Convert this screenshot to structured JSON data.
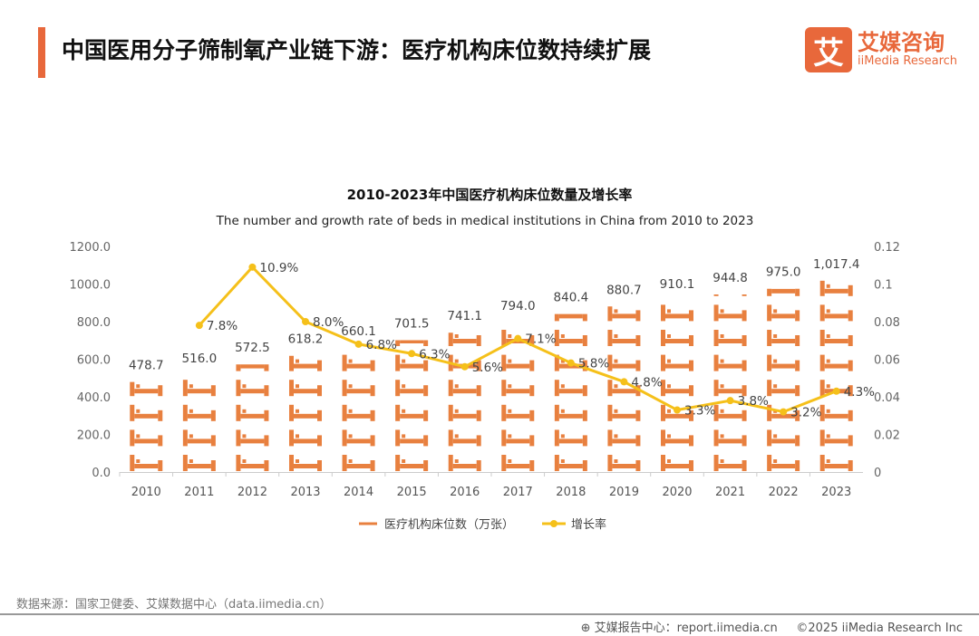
{
  "header": {
    "title": "中国医用分子筛制氧产业链下游：医疗机构床位数持续扩展",
    "logo_cn": "艾媒咨询",
    "logo_en": "iiMedia Research",
    "logo_mark": "艾"
  },
  "colors": {
    "accent": "#e8683b",
    "bar": "#e8803f",
    "line": "#f5c01a"
  },
  "chart_data": {
    "type": "bar+line",
    "title": "2010-2023年中国医疗机构床位数量及增长率",
    "subtitle": "The number and growth rate of beds in medical institutions in China from 2010 to 2023",
    "categories": [
      "2010",
      "2011",
      "2012",
      "2013",
      "2014",
      "2015",
      "2016",
      "2017",
      "2018",
      "2019",
      "2020",
      "2021",
      "2022",
      "2023"
    ],
    "series": [
      {
        "name": "医疗机构床位数（万张）",
        "type": "pictorial-bar",
        "axis": "left",
        "values": [
          478.7,
          516.0,
          572.5,
          618.2,
          660.1,
          701.5,
          741.1,
          794.0,
          840.4,
          880.7,
          910.1,
          944.8,
          975.0,
          1017.4
        ],
        "labels": [
          "478.7",
          "516.0",
          "572.5",
          "618.2",
          "660.1",
          "701.5",
          "741.1",
          "794.0",
          "840.4",
          "880.7",
          "910.1",
          "944.8",
          "975.0",
          "1,017.4"
        ]
      },
      {
        "name": "增长率",
        "type": "line",
        "axis": "right",
        "values": [
          null,
          0.078,
          0.109,
          0.08,
          0.068,
          0.063,
          0.056,
          0.071,
          0.058,
          0.048,
          0.033,
          0.038,
          0.032,
          0.043
        ],
        "labels": [
          "",
          "7.8%",
          "10.9%",
          "8.0%",
          "6.8%",
          "6.3%",
          "5.6%",
          "7.1%",
          "5.8%",
          "4.8%",
          "3.3%",
          "3.8%",
          "3.2%",
          "4.3%"
        ]
      }
    ],
    "y_left": {
      "range": [
        0,
        1200
      ],
      "ticks": [
        "0.0",
        "200.0",
        "400.0",
        "600.0",
        "800.0",
        "1000.0",
        "1200.0"
      ]
    },
    "y_right": {
      "range": [
        0,
        0.12
      ],
      "ticks": [
        "0",
        "0.02",
        "0.04",
        "0.06",
        "0.08",
        "0.1",
        "0.12"
      ]
    },
    "grid": false,
    "legend": "bottom"
  },
  "footer": {
    "source": "数据来源：国家卫健委、艾媒数据中心（data.iimedia.cn）",
    "report": "艾媒报告中心：report.iimedia.cn",
    "copyright": "©2025  iiMedia Research  Inc"
  }
}
